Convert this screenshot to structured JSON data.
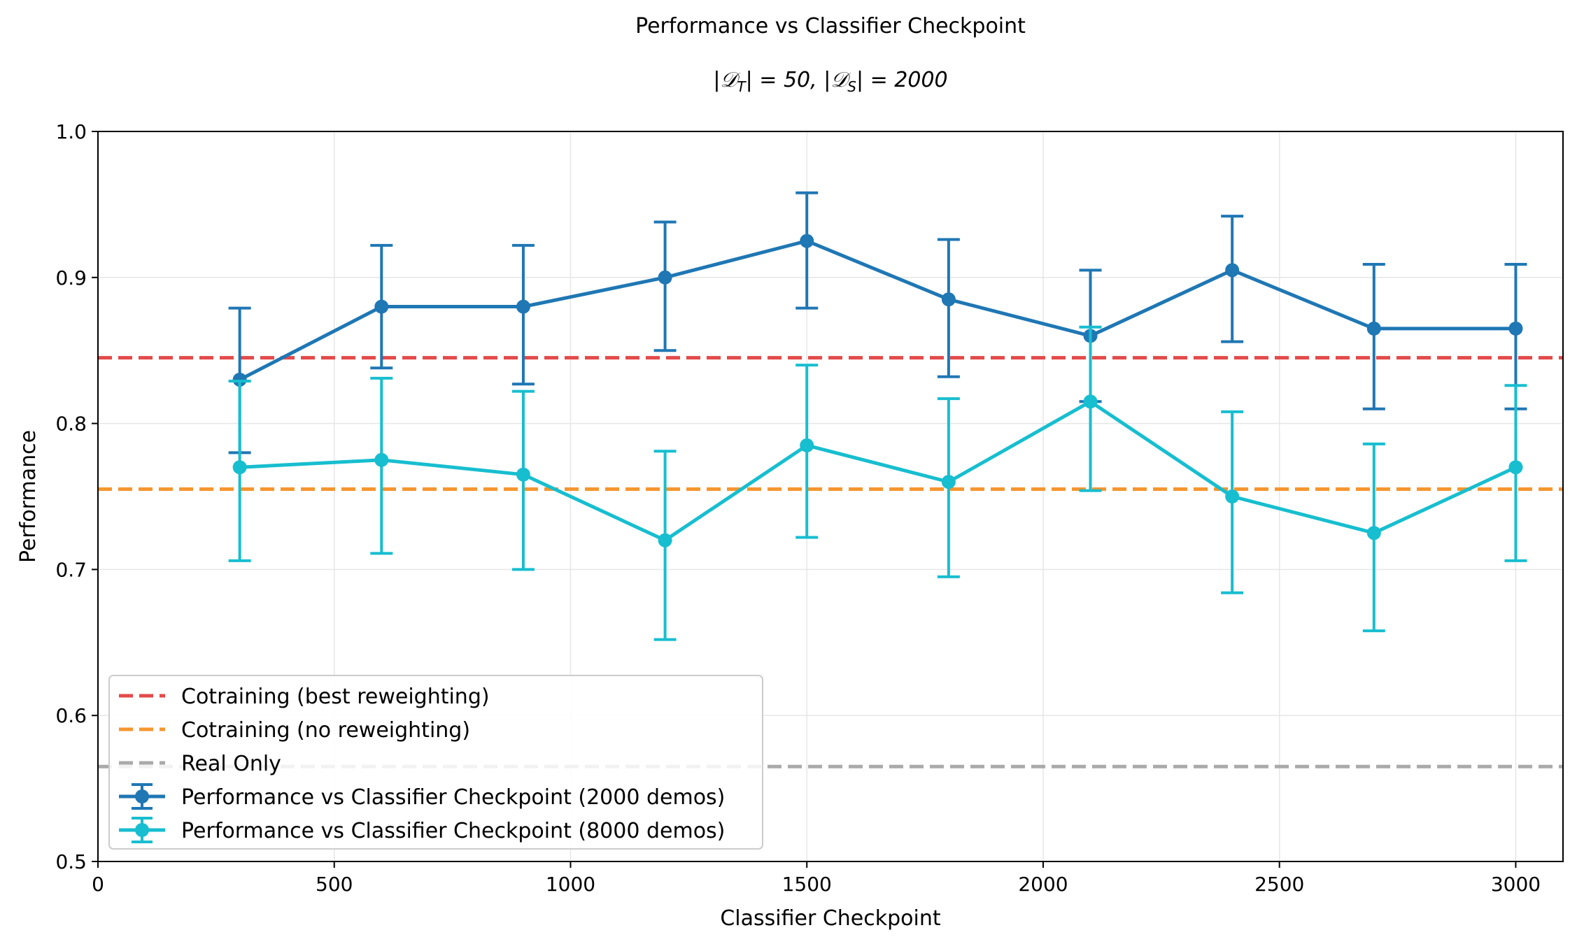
{
  "chart_data": {
    "type": "line",
    "title": "Performance vs Classifier Checkpoint",
    "subtitle": "|𝒟T| = 50, |𝒟S| = 2000",
    "subtitle_parts": {
      "bar1": "|",
      "d1": "𝒟",
      "sub1": "T",
      "rest1": "| = 50, |",
      "d2": "𝒟",
      "sub2": "S",
      "rest2": "| = 2000"
    },
    "xlabel": "Classifier Checkpoint",
    "ylabel": "Performance",
    "xlim": [
      0,
      3100
    ],
    "ylim": [
      0.5,
      1.0
    ],
    "xticks": [
      0,
      500,
      1000,
      1500,
      2000,
      2500,
      3000
    ],
    "yticks": [
      0.5,
      0.6,
      0.7,
      0.8,
      0.9,
      1.0
    ],
    "xtick_labels": [
      "0",
      "500",
      "1000",
      "1500",
      "2000",
      "2500",
      "3000"
    ],
    "ytick_labels": [
      "0.5",
      "0.6",
      "0.7",
      "0.8",
      "0.9",
      "1.0"
    ],
    "grid": true,
    "legend_position": "lower-left",
    "reference_lines": [
      {
        "name": "Cotraining (best reweighting)",
        "y": 0.845,
        "color": "#e34a4a",
        "style": "dashed"
      },
      {
        "name": "Cotraining (no reweighting)",
        "y": 0.755,
        "color": "#f5962f",
        "style": "dashed"
      },
      {
        "name": "Real Only",
        "y": 0.565,
        "color": "#aaaaaa",
        "style": "dashed"
      }
    ],
    "series": [
      {
        "name": "Performance vs Classifier Checkpoint (2000 demos)",
        "color": "#1f77b4",
        "x": [
          300,
          600,
          900,
          1200,
          1500,
          1800,
          2100,
          2400,
          2700,
          3000
        ],
        "y": [
          0.83,
          0.88,
          0.88,
          0.9,
          0.925,
          0.885,
          0.86,
          0.905,
          0.865,
          0.865
        ],
        "err_low": [
          0.78,
          0.838,
          0.827,
          0.85,
          0.879,
          0.832,
          0.815,
          0.856,
          0.81,
          0.81
        ],
        "err_high": [
          0.879,
          0.922,
          0.922,
          0.938,
          0.958,
          0.926,
          0.905,
          0.942,
          0.909,
          0.909
        ]
      },
      {
        "name": "Performance vs Classifier Checkpoint (8000 demos)",
        "color": "#17becf",
        "x": [
          300,
          600,
          900,
          1200,
          1500,
          1800,
          2100,
          2400,
          2700,
          3000
        ],
        "y": [
          0.77,
          0.775,
          0.765,
          0.72,
          0.785,
          0.76,
          0.815,
          0.75,
          0.725,
          0.77
        ],
        "err_low": [
          0.706,
          0.711,
          0.7,
          0.652,
          0.722,
          0.695,
          0.754,
          0.684,
          0.658,
          0.706
        ],
        "err_high": [
          0.829,
          0.831,
          0.822,
          0.781,
          0.84,
          0.817,
          0.866,
          0.808,
          0.786,
          0.826
        ]
      }
    ]
  }
}
